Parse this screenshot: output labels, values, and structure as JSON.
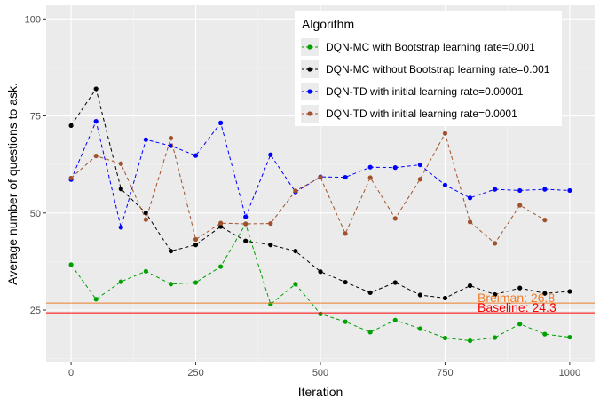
{
  "chart_data": {
    "type": "line",
    "xlabel": "Iteration",
    "ylabel": "Average number of questions to ask.",
    "xlim": [
      -50,
      1050
    ],
    "ylim": [
      11.5,
      103.5
    ],
    "x_ticks": [
      0,
      250,
      500,
      750,
      1000
    ],
    "y_ticks": [
      25,
      50,
      75,
      100
    ],
    "x_tick_labels": [
      "0",
      "250",
      "500",
      "750",
      "1000"
    ],
    "y_tick_labels": [
      "25",
      "50",
      "75",
      "100"
    ],
    "grid": true,
    "background": "#ebebeb",
    "legend": {
      "title": "Algorithm",
      "placement": "top-right"
    },
    "series": [
      {
        "name": "DQN-MC with Bootstrap learning rate=0.001",
        "color": "#00a000",
        "x": [
          0,
          50,
          100,
          150,
          200,
          250,
          300,
          350,
          400,
          450,
          500,
          550,
          600,
          650,
          700,
          750,
          800,
          850,
          900,
          950,
          1000
        ],
        "y": [
          36.7,
          27.8,
          32.3,
          35.0,
          31.7,
          32.1,
          36.2,
          47.2,
          26.5,
          31.7,
          24.0,
          22.0,
          19.3,
          22.4,
          20.2,
          17.8,
          17.1,
          17.9,
          21.4,
          18.8,
          18.0
        ]
      },
      {
        "name": "DQN-MC without Bootstrap learning rate=0.001",
        "color": "#000000",
        "x": [
          0,
          50,
          100,
          150,
          200,
          250,
          300,
          350,
          400,
          450,
          500,
          550,
          600,
          650,
          700,
          750,
          800,
          850,
          900,
          950,
          1000
        ],
        "y": [
          72.5,
          82.0,
          56.2,
          50.0,
          40.2,
          41.8,
          46.5,
          42.8,
          41.8,
          40.2,
          34.9,
          32.2,
          29.5,
          32.1,
          28.9,
          28.1,
          31.3,
          29.0,
          30.7,
          29.3,
          29.8
        ]
      },
      {
        "name": "DQN-TD with initial learning rate=0.00001",
        "color": "#0000ff",
        "x": [
          0,
          50,
          100,
          150,
          200,
          250,
          300,
          350,
          400,
          450,
          500,
          550,
          600,
          650,
          700,
          750,
          800,
          850,
          900,
          950,
          1000
        ],
        "y": [
          58.6,
          73.6,
          46.3,
          68.9,
          67.3,
          64.8,
          73.2,
          49.0,
          65.0,
          55.4,
          59.3,
          59.2,
          61.8,
          61.7,
          62.4,
          57.2,
          53.9,
          56.1,
          55.8,
          56.1,
          55.8
        ]
      },
      {
        "name": "DQN-TD with initial learning rate=0.0001",
        "color": "#a0522d",
        "x": [
          0,
          50,
          100,
          150,
          200,
          250,
          300,
          350,
          400,
          450,
          500,
          550,
          600,
          650,
          700,
          750,
          800,
          850,
          900,
          950
        ],
        "y": [
          59.0,
          64.7,
          62.7,
          48.3,
          69.3,
          43.2,
          47.4,
          47.2,
          47.3,
          55.7,
          59.2,
          44.7,
          59.1,
          48.6,
          58.7,
          70.5,
          47.7,
          42.2,
          52.0,
          48.2
        ]
      }
    ],
    "reference_lines": [
      {
        "label": "Breiman: 26.8",
        "y": 26.8,
        "color": "#f07c28"
      },
      {
        "label": "Baseline: 24.3",
        "y": 24.3,
        "color": "#ff0000"
      }
    ]
  }
}
